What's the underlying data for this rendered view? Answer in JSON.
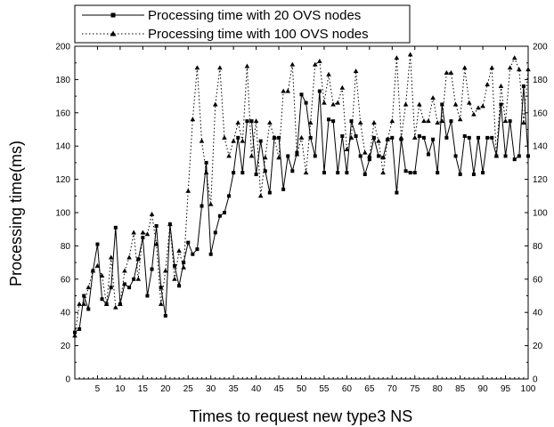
{
  "chart_data": {
    "type": "line",
    "xlabel": "Times to request new type3 NS",
    "ylabel": "Processing time(ms)",
    "xlim": [
      0,
      100
    ],
    "ylim": [
      0,
      200
    ],
    "x_ticks": [
      5,
      10,
      15,
      20,
      25,
      30,
      35,
      40,
      45,
      50,
      55,
      60,
      65,
      70,
      75,
      80,
      85,
      90,
      95,
      100
    ],
    "y_ticks": [
      0,
      20,
      40,
      60,
      80,
      100,
      120,
      140,
      160,
      180,
      200
    ],
    "y_ticks_right": true,
    "grid": false,
    "legend_position": "top-left",
    "series": [
      {
        "name": "Processing time with 20 OVS nodes",
        "marker": "square",
        "line_style": "solid",
        "values": [
          28,
          30,
          50,
          42,
          65,
          81,
          48,
          45,
          55,
          91,
          45,
          57,
          55,
          60,
          72,
          85,
          50,
          66,
          92,
          55,
          38,
          93,
          68,
          56,
          70,
          82,
          75,
          78,
          104,
          130,
          75,
          88,
          98,
          100,
          110,
          124,
          145,
          124,
          155,
          155,
          123,
          143,
          125,
          112,
          145,
          145,
          114,
          134,
          125,
          136,
          171,
          166,
          145,
          134,
          173,
          124,
          156,
          155,
          124,
          146,
          124,
          155,
          146,
          134,
          123,
          132,
          145,
          134,
          133,
          144,
          145,
          112,
          144,
          125,
          124,
          124,
          146,
          145,
          135,
          144,
          124,
          165,
          145,
          155,
          134,
          123,
          146,
          145,
          123,
          145,
          124,
          145,
          145,
          134,
          165,
          134,
          155,
          132,
          134,
          176,
          134
        ]
      },
      {
        "name": "Processing time with 100 OVS nodes",
        "marker": "triangle",
        "line_style": "dotted",
        "values": [
          26,
          45,
          45,
          55,
          65,
          68,
          62,
          45,
          73,
          43,
          45,
          65,
          73,
          88,
          60,
          88,
          87,
          99,
          81,
          45,
          65,
          93,
          60,
          77,
          67,
          113,
          156,
          187,
          143,
          124,
          105,
          165,
          187,
          145,
          134,
          143,
          154,
          143,
          188,
          134,
          155,
          110,
          133,
          154,
          145,
          133,
          173,
          173,
          189,
          135,
          145,
          124,
          154,
          189,
          191,
          166,
          183,
          165,
          166,
          175,
          138,
          145,
          185,
          154,
          136,
          134,
          154,
          143,
          124,
          144,
          155,
          193,
          145,
          165,
          195,
          145,
          165,
          155,
          155,
          169,
          154,
          155,
          184,
          184,
          165,
          156,
          187,
          166,
          159,
          163,
          164,
          177,
          187,
          134,
          176,
          155,
          187,
          193,
          186,
          154,
          186
        ]
      }
    ]
  }
}
